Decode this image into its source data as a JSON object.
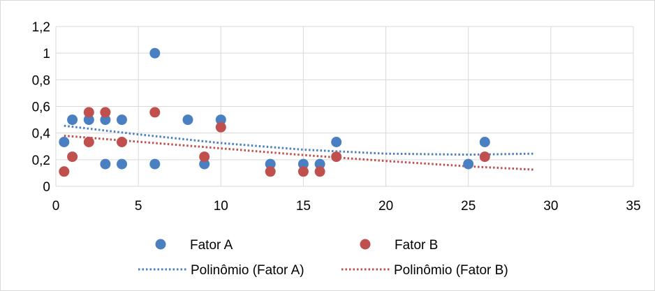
{
  "chart_data": {
    "type": "scatter",
    "xlim": [
      0,
      35
    ],
    "ylim": [
      0,
      1.2
    ],
    "x_ticks": [
      "0",
      "5",
      "10",
      "15",
      "20",
      "25",
      "30",
      "35"
    ],
    "y_ticks": [
      "0",
      "0,2",
      "0,4",
      "0,6",
      "0,8",
      "1",
      "1,2"
    ],
    "grid": "horizontal and vertical major gridlines",
    "legend_position": "bottom",
    "series": [
      {
        "name": "Fator A",
        "color": "#4a7fc1",
        "points": [
          [
            0.5,
            0.333
          ],
          [
            1,
            0.5
          ],
          [
            2,
            0.5
          ],
          [
            3,
            0.5
          ],
          [
            3,
            0.167
          ],
          [
            4,
            0.5
          ],
          [
            4,
            0.167
          ],
          [
            6,
            1.0
          ],
          [
            6,
            0.167
          ],
          [
            8,
            0.5
          ],
          [
            9,
            0.167
          ],
          [
            10,
            0.5
          ],
          [
            13,
            0.167
          ],
          [
            15,
            0.167
          ],
          [
            16,
            0.167
          ],
          [
            17,
            0.333
          ],
          [
            25,
            0.167
          ],
          [
            26,
            0.333
          ]
        ]
      },
      {
        "name": "Fator B",
        "color": "#c0504d",
        "points": [
          [
            0.5,
            0.111
          ],
          [
            1,
            0.222
          ],
          [
            2,
            0.556
          ],
          [
            2,
            0.333
          ],
          [
            3,
            0.556
          ],
          [
            4,
            0.333
          ],
          [
            6,
            0.556
          ],
          [
            9,
            0.222
          ],
          [
            10,
            0.444
          ],
          [
            13,
            0.111
          ],
          [
            15,
            0.111
          ],
          [
            16,
            0.111
          ],
          [
            17,
            0.222
          ],
          [
            26,
            0.222
          ]
        ]
      }
    ],
    "trendlines": [
      {
        "name": "Polinômio (Fator A)",
        "color": "#4a7fc1",
        "x_range": [
          0.5,
          29
        ],
        "points": [
          [
            0.5,
            0.455
          ],
          [
            5,
            0.39
          ],
          [
            10,
            0.325
          ],
          [
            15,
            0.275
          ],
          [
            20,
            0.245
          ],
          [
            25,
            0.238
          ],
          [
            29,
            0.245
          ]
        ]
      },
      {
        "name": "Polinômio (Fator B)",
        "color": "#c0504d",
        "x_range": [
          0.5,
          29
        ],
        "points": [
          [
            0.5,
            0.38
          ],
          [
            5,
            0.335
          ],
          [
            10,
            0.285
          ],
          [
            15,
            0.235
          ],
          [
            20,
            0.19
          ],
          [
            25,
            0.15
          ],
          [
            29,
            0.125
          ]
        ]
      }
    ]
  },
  "legend": {
    "fator_a": "Fator A",
    "fator_b": "Fator B",
    "poly_a": "Polinômio (Fator A)",
    "poly_b": "Polinômio (Fator B)"
  }
}
